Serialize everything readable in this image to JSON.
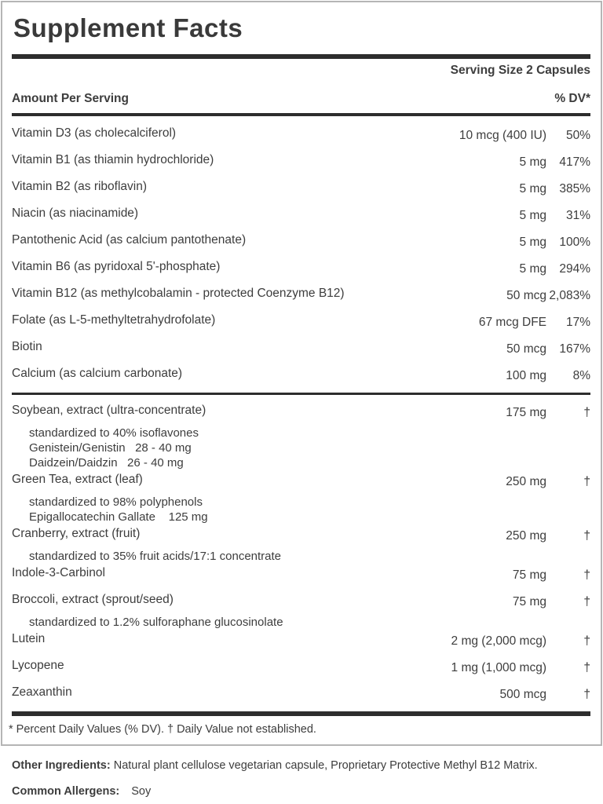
{
  "label": {
    "title": "Supplement Facts",
    "serving_size": "Serving Size 2 Capsules",
    "columns": {
      "amount_header": "Amount Per Serving",
      "dv_header": "% DV*"
    },
    "rows": [
      {
        "name": "Vitamin D3 (as cholecalciferol)",
        "amount": "10 mcg (400 IU)",
        "dv": "50%"
      },
      {
        "name": "Vitamin B1 (as thiamin hydrochloride)",
        "amount": "5 mg",
        "dv": "417%"
      },
      {
        "name": "Vitamin B2 (as riboflavin)",
        "amount": "5 mg",
        "dv": "385%"
      },
      {
        "name": "Niacin (as niacinamide)",
        "amount": "5 mg",
        "dv": "31%"
      },
      {
        "name": "Pantothenic Acid (as calcium pantothenate)",
        "amount": "5 mg",
        "dv": "100%"
      },
      {
        "name": "Vitamin B6 (as pyridoxal 5'-phosphate)",
        "amount": "5 mg",
        "dv": "294%"
      },
      {
        "name": "Vitamin B12 (as methylcobalamin - protected Coenzyme B12)",
        "amount": "50 mcg",
        "dv": "2,083%"
      },
      {
        "name": "Folate (as L-5-methyltetrahydrofolate)",
        "amount": "67 mcg DFE",
        "dv": "17%"
      },
      {
        "name": "Biotin",
        "amount": "50 mcg",
        "dv": "167%"
      },
      {
        "name": "Calcium (as calcium carbonate)",
        "amount": "100 mg",
        "dv": "8%",
        "divider_after": true
      },
      {
        "name": "Soybean, extract (ultra-concentrate)",
        "amount": "175 mg",
        "dv": "†",
        "sublines": [
          "standardized to 40% isoflavones",
          "Genistein/Genistin   28 - 40 mg",
          "Daidzein/Daidzin   26 - 40 mg"
        ]
      },
      {
        "name": "Green Tea, extract (leaf)",
        "amount": "250 mg",
        "dv": "†",
        "sublines": [
          "standardized to 98% polyphenols",
          "Epigallocatechin Gallate    125 mg"
        ]
      },
      {
        "name": "Cranberry, extract (fruit)",
        "amount": "250 mg",
        "dv": "†",
        "sublines": [
          "standardized to 35% fruit acids/17:1 concentrate"
        ]
      },
      {
        "name": "Indole-3-Carbinol",
        "amount": "75 mg",
        "dv": "†"
      },
      {
        "name": "Broccoli, extract (sprout/seed)",
        "amount": "75 mg",
        "dv": "†",
        "sublines": [
          "standardized to 1.2% sulforaphane glucosinolate"
        ]
      },
      {
        "name": "Lutein",
        "amount": "2 mg (2,000 mcg)",
        "dv": "†"
      },
      {
        "name": "Lycopene",
        "amount": "1 mg (1,000 mcg)",
        "dv": "†"
      },
      {
        "name": "Zeaxanthin",
        "amount": "500 mcg",
        "dv": "†"
      }
    ],
    "footnote": "* Percent Daily Values (% DV). † Daily Value not established."
  },
  "other_ingredients": {
    "label": "Other Ingredients:",
    "text": " Natural plant cellulose vegetarian capsule, Proprietary Protective Methyl B12 Matrix."
  },
  "allergens": {
    "label": "Common Allergens:",
    "value": "Soy"
  },
  "colors": {
    "text": "#3d3d3d",
    "rule": "#2d2d2d",
    "border": "#b5b5b5",
    "background": "#ffffff"
  }
}
